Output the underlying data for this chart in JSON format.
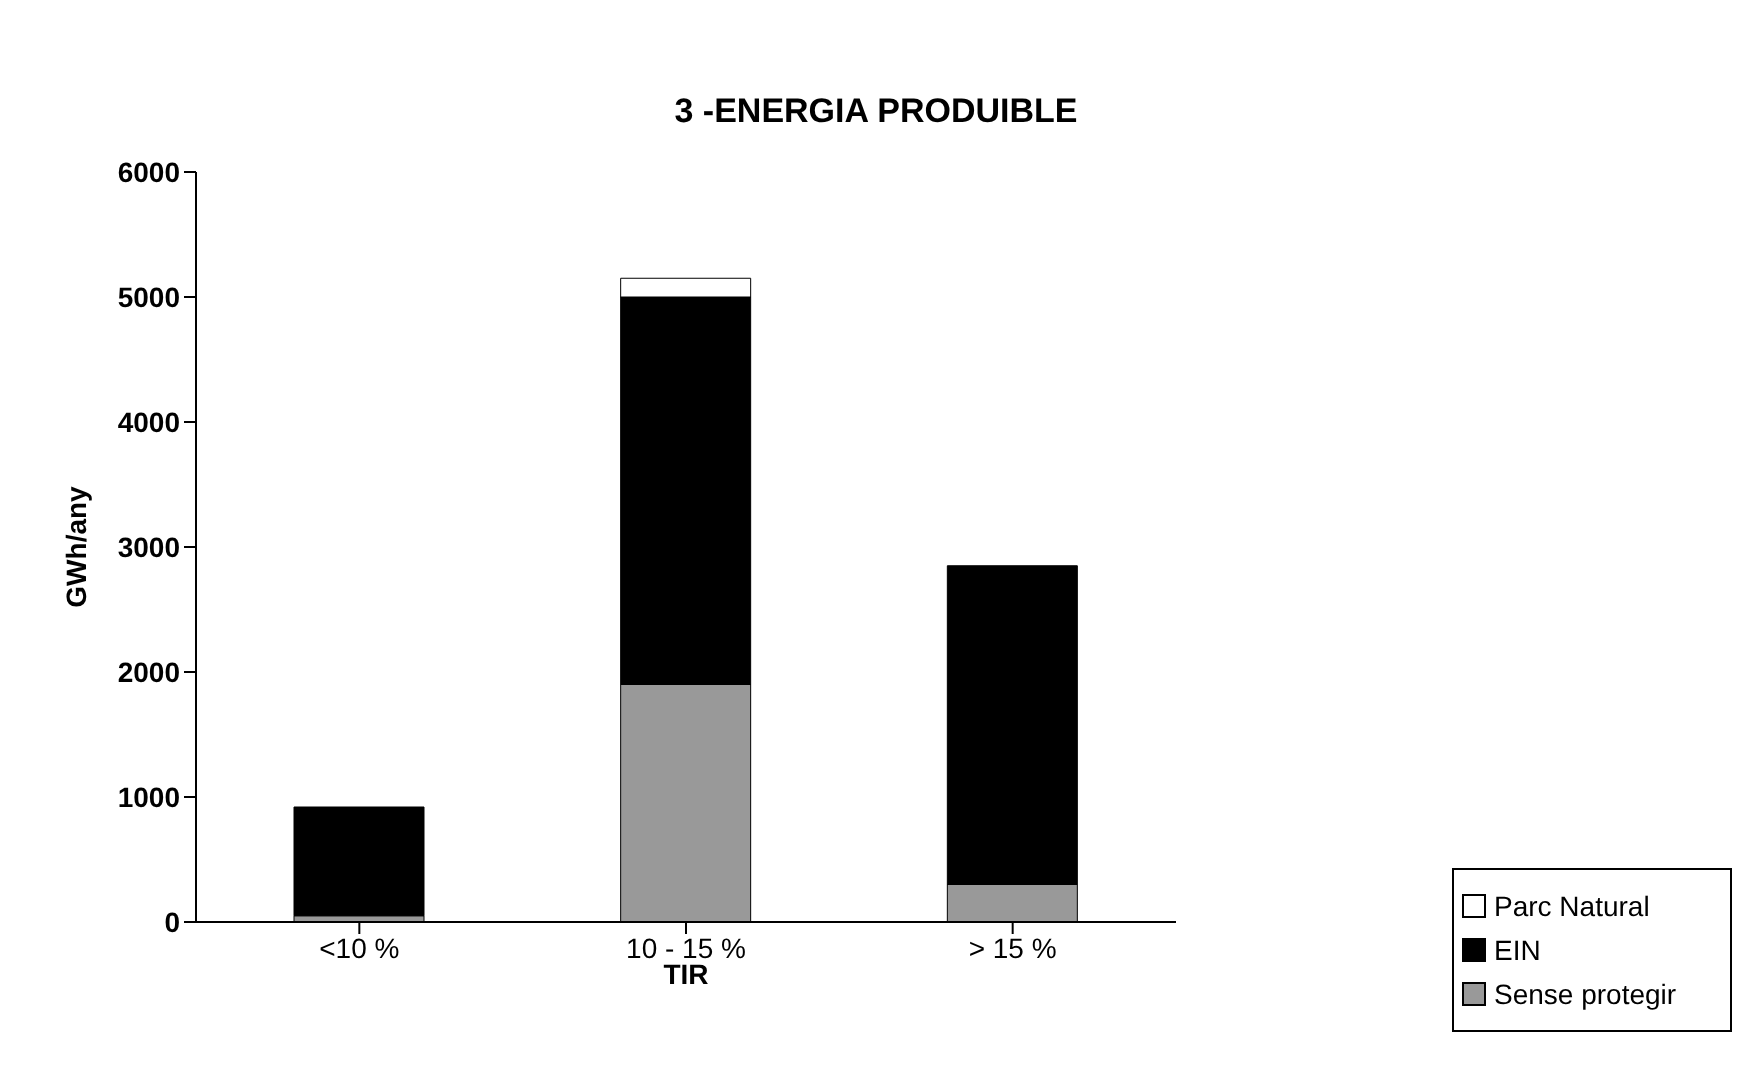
{
  "chart_data": {
    "type": "bar",
    "title": "3 -ENERGIA PRODUIBLE",
    "xlabel": "TIR",
    "ylabel": "GWh/any",
    "categories": [
      "<10 %",
      "10 - 15 %",
      "> 15 %"
    ],
    "stacked": true,
    "series": [
      {
        "name": "Sense protegir",
        "color": "#999999",
        "values": [
          50,
          1900,
          300
        ]
      },
      {
        "name": "EIN",
        "color": "#000000",
        "values": [
          870,
          3100,
          2550
        ]
      },
      {
        "name": "Parc Natural",
        "color": "#ffffff",
        "values": [
          0,
          150,
          0
        ]
      }
    ],
    "ylim": [
      0,
      6000
    ],
    "yticks": [
      0,
      1000,
      2000,
      3000,
      4000,
      5000,
      6000
    ],
    "grid": false,
    "legend": "bottom right"
  }
}
